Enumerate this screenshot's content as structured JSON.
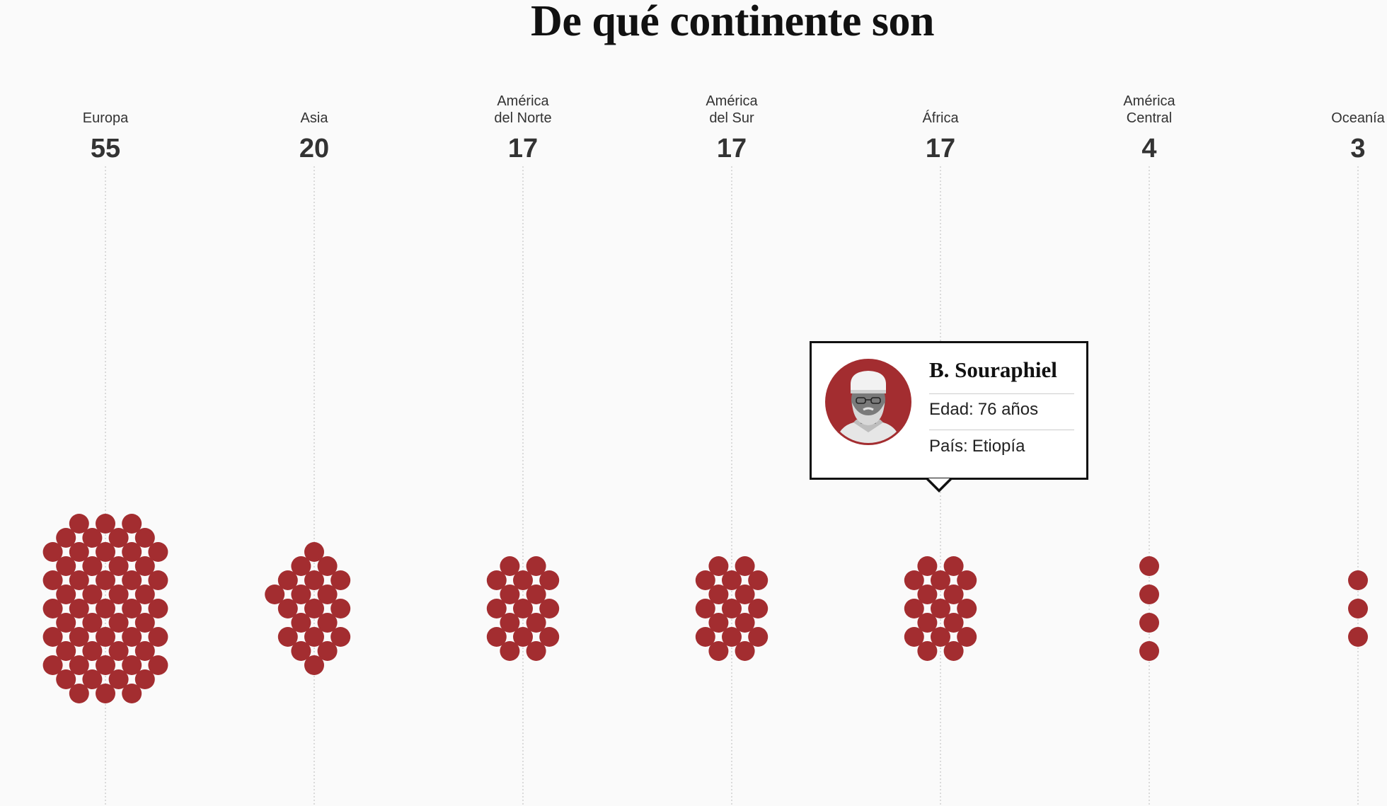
{
  "title": "De qué continente son",
  "colors": {
    "dot": "#a32d30",
    "avatar_bg": "#a32d30",
    "text": "#333333"
  },
  "chart_data": {
    "type": "scatter",
    "subtype": "beeswarm",
    "title": "De qué continente son",
    "categories": [
      {
        "label_lines": [
          "Europa"
        ],
        "count": 55
      },
      {
        "label_lines": [
          "Asia"
        ],
        "count": 20
      },
      {
        "label_lines": [
          "América",
          "del Norte"
        ],
        "count": 17
      },
      {
        "label_lines": [
          "América",
          "del Sur"
        ],
        "count": 17
      },
      {
        "label_lines": [
          "África"
        ],
        "count": 17
      },
      {
        "label_lines": [
          "América",
          "Central"
        ],
        "count": 4
      },
      {
        "label_lines": [
          "Oceanía"
        ],
        "count": 3
      }
    ],
    "grid": false,
    "legend": "none"
  },
  "tooltip": {
    "name": "B. Souraphiel",
    "age_key": "Edad:",
    "age_value": "76 años",
    "country_key": "País:",
    "country_value": "Etiopía",
    "avatar_icon": "portrait-photo-icon"
  }
}
